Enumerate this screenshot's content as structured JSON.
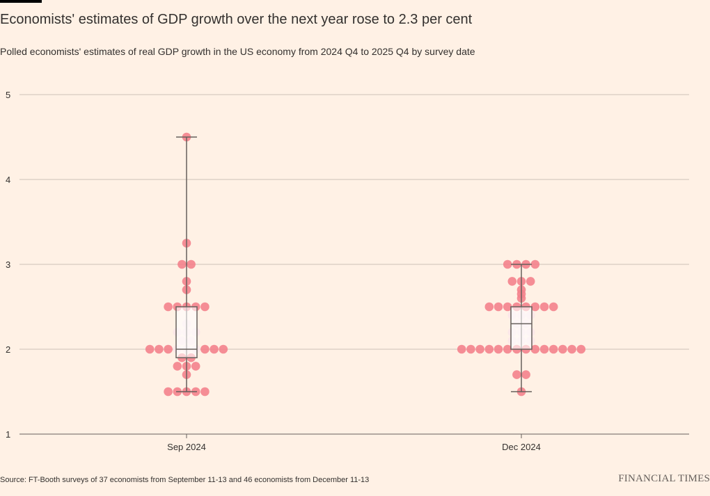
{
  "header": {
    "title": "Economists' estimates of GDP growth over the next year rose to 2.3 per cent",
    "subtitle": "Polled economists' estimates of real GDP growth in the US economy from 2024 Q4 to 2025 Q4 by survey date"
  },
  "footer": {
    "source": "Source: FT-Booth surveys of 37 economists from September 11-13 and 46 economists from December 11-13",
    "brand": "FINANCIAL TIMES"
  },
  "colors": {
    "background": "#fff1e5",
    "dot": "#f4828c",
    "dot_in_box": "#fbe6e8",
    "box_fill": "#ffffff",
    "box_stroke": "#66605c",
    "gridline": "#ccc1b7",
    "text": "#33302e"
  },
  "chart_data": {
    "type": "scatter",
    "style": "beeswarm with box plot",
    "categories": [
      "Sep 2024",
      "Dec 2024"
    ],
    "ylim": [
      1,
      5
    ],
    "yticks": [
      1,
      2,
      3,
      4,
      5
    ],
    "grid": true,
    "xlabel": "",
    "ylabel": "",
    "series": [
      {
        "category": "Sep 2024",
        "values": [
          4.5,
          3.25,
          3,
          3,
          2.8,
          2.7,
          2.5,
          2.5,
          2.5,
          2.5,
          2.5,
          2.3,
          2.2,
          2.2,
          2.2,
          2.1,
          2.1,
          2,
          2,
          2,
          2,
          2,
          2,
          2,
          2,
          2,
          1.9,
          1.9,
          1.8,
          1.8,
          1.8,
          1.7,
          1.5,
          1.5,
          1.5,
          1.5,
          1.5
        ],
        "box": {
          "whisker_low": 1.5,
          "q1": 1.9,
          "median": 2.0,
          "q3": 2.5,
          "whisker_high": 4.5
        }
      },
      {
        "category": "Dec 2024",
        "values": [
          3,
          3,
          3,
          3,
          2.8,
          2.8,
          2.8,
          2.7,
          2.65,
          2.6,
          2.5,
          2.5,
          2.5,
          2.5,
          2.5,
          2.5,
          2.5,
          2.5,
          2.4,
          2.4,
          2.4,
          2.3,
          2.3,
          2.2,
          2.2,
          2.2,
          2.1,
          2.1,
          2.1,
          2,
          2,
          2,
          2,
          2,
          2,
          2,
          2,
          2,
          2,
          2,
          2,
          2,
          2,
          1.7,
          1.7,
          1.5
        ],
        "box": {
          "whisker_low": 1.5,
          "q1": 2.0,
          "median": 2.3,
          "q3": 2.5,
          "whisker_high": 3.0
        }
      }
    ]
  }
}
